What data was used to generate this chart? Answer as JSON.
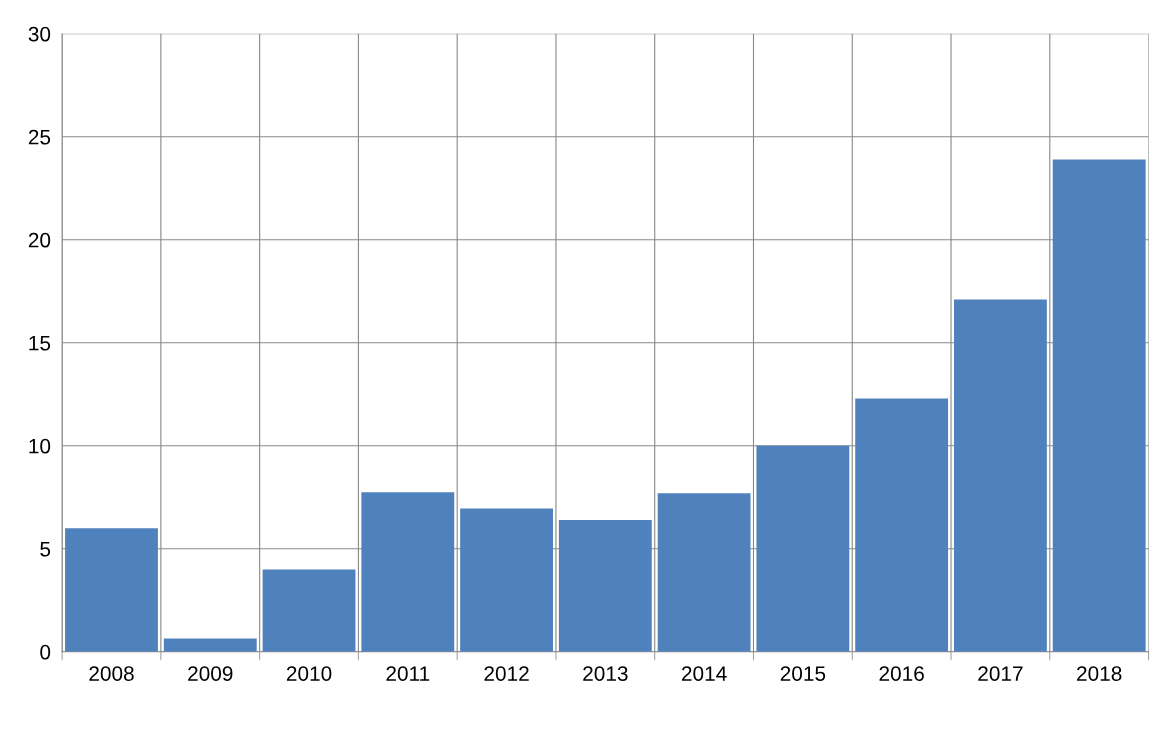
{
  "chart_data": {
    "type": "bar",
    "categories": [
      "2008",
      "2009",
      "2010",
      "2011",
      "2012",
      "2013",
      "2014",
      "2015",
      "2016",
      "2017",
      "2018"
    ],
    "values": [
      6.0,
      0.65,
      4.0,
      7.75,
      6.95,
      6.4,
      7.7,
      10.0,
      12.3,
      17.1,
      23.9
    ],
    "color": "#4f81bd",
    "ylim": [
      0,
      30
    ],
    "yticks": [
      0,
      5,
      10,
      15,
      20,
      25,
      30
    ],
    "grid": true
  }
}
